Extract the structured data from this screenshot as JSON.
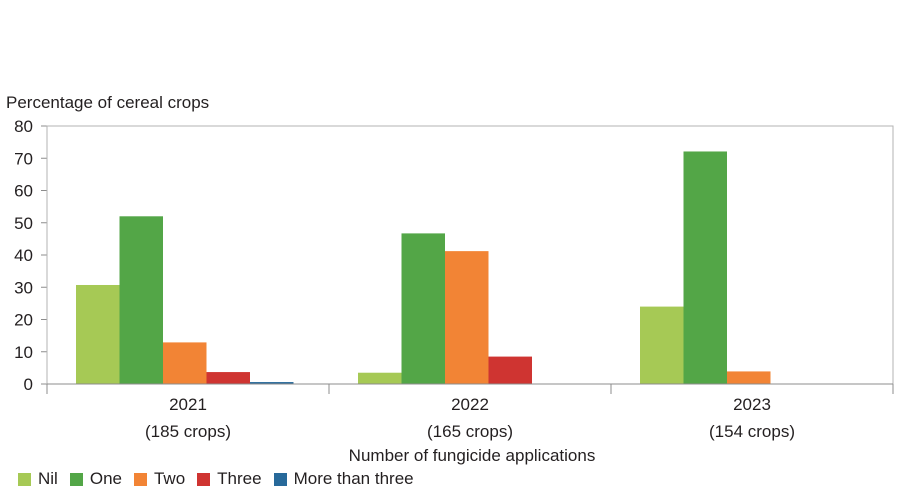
{
  "chart_data": {
    "type": "bar",
    "ylabel": "Percentage of cereal crops",
    "xlabel": "Number of fungicide applications",
    "ylim": [
      0,
      80
    ],
    "yticks": [
      0,
      10,
      20,
      30,
      40,
      50,
      60,
      70,
      80
    ],
    "categories": [
      "2021",
      "2022",
      "2023"
    ],
    "category_sublabels": [
      "(185 crops)",
      "(165 crops)",
      "(154 crops)"
    ],
    "series": [
      {
        "name": "Nil",
        "color": "#a6c955",
        "values": [
          30.7,
          3.5,
          24.0
        ]
      },
      {
        "name": "One",
        "color": "#53a647",
        "values": [
          52.0,
          46.7,
          72.1
        ]
      },
      {
        "name": "Two",
        "color": "#f28435",
        "values": [
          12.9,
          41.2,
          3.9
        ]
      },
      {
        "name": "Three",
        "color": "#cf3431",
        "values": [
          3.7,
          8.5,
          0
        ]
      },
      {
        "name": "More than three",
        "color": "#27699a",
        "values": [
          0.6,
          0,
          0
        ]
      }
    ],
    "legend_position": "bottom-left",
    "grid": false
  }
}
